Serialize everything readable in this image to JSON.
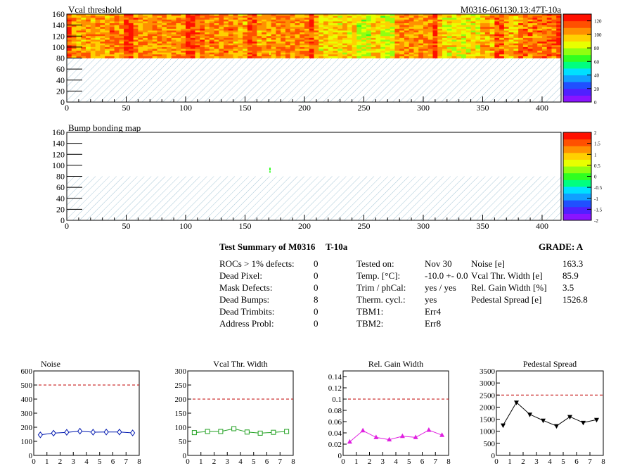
{
  "colors": {
    "palette": [
      "#8a14ff",
      "#5020ff",
      "#2050ff",
      "#10a0ff",
      "#00e0ff",
      "#00ff80",
      "#30ff20",
      "#90ff10",
      "#e8ff00",
      "#ffd000",
      "#ff9000",
      "#ff5000",
      "#ff1000"
    ],
    "noise_series": "#0018b0",
    "vcal_series": "#20a020",
    "gain_series": "#e020e0",
    "pedestal_series": "#000000",
    "limit_line": "#c00000",
    "hatch": "#a8c8d8"
  },
  "maps": [
    {
      "id": "vcal",
      "title": "Vcal threshold",
      "corner_label": "M0316-061130.13:47T-10a",
      "x_ticks": [
        "0",
        "50",
        "100",
        "150",
        "200",
        "250",
        "300",
        "350",
        "400"
      ],
      "y_ticks": [
        "0",
        "20",
        "40",
        "60",
        "80",
        "100",
        "120",
        "140",
        "160"
      ],
      "scale_ticks": [
        "120",
        "100",
        "80",
        "60",
        "40",
        "20",
        "0"
      ]
    },
    {
      "id": "bump",
      "title": "Bump bonding map",
      "corner_label": "",
      "x_ticks": [
        "0",
        "50",
        "100",
        "150",
        "200",
        "250",
        "300",
        "350",
        "400"
      ],
      "y_ticks": [
        "0",
        "20",
        "40",
        "60",
        "80",
        "100",
        "120",
        "140",
        "160"
      ],
      "scale_ticks": [
        "2",
        "1.5",
        "1",
        "0.5",
        "0",
        "-0.5",
        "-1",
        "-1.5",
        "-2"
      ]
    }
  ],
  "summary": {
    "title": "Test Summary of M0316",
    "temp_tag": "T-10a",
    "grade": "GRADE:  A",
    "defects": [
      {
        "label": "ROCs > 1% defects:",
        "value": "0"
      },
      {
        "label": "Dead Pixel:",
        "value": "0"
      },
      {
        "label": "Mask Defects:",
        "value": "0"
      },
      {
        "label": "Dead Bumps:",
        "value": "8"
      },
      {
        "label": "Dead Trimbits:",
        "value": "0"
      },
      {
        "label": "Address Probl:",
        "value": "0"
      }
    ],
    "conditions": [
      {
        "label": "Tested on:",
        "value": "Nov 30"
      },
      {
        "label": "Temp. [°C]:",
        "value": "-10.0 +- 0.0"
      },
      {
        "label": "Trim / phCal:",
        "value": "yes / yes"
      },
      {
        "label": "Therm. cycl.:",
        "value": "yes"
      },
      {
        "label": "TBM1:",
        "value": "Err4"
      },
      {
        "label": "TBM2:",
        "value": "Err8"
      }
    ],
    "results": [
      {
        "label": "Noise [e]",
        "value": "163.3"
      },
      {
        "label": "Vcal Thr. Width [e]",
        "value": "85.9"
      },
      {
        "label": "Rel. Gain Width [%]",
        "value": "3.5"
      },
      {
        "label": "Pedestal Spread [e]",
        "value": "1526.8"
      }
    ]
  },
  "chart_data": [
    {
      "type": "heatmap",
      "title": "Vcal threshold",
      "xlim": [
        0,
        416
      ],
      "ylim": [
        0,
        160
      ],
      "z_range": [
        0,
        130
      ],
      "filled_rows": [
        80,
        160
      ],
      "column_means": [
        105,
        110,
        108,
        112,
        105,
        110,
        95,
        85,
        108,
        92,
        102,
        112
      ],
      "hot_spot": {
        "x": 171,
        "y": 88,
        "z": 85
      }
    },
    {
      "type": "heatmap",
      "title": "Bump bonding map",
      "xlim": [
        0,
        416
      ],
      "ylim": [
        0,
        160
      ],
      "z_range": [
        -2,
        2
      ],
      "filled_rows": [
        80,
        160
      ],
      "dead_bumps": [
        {
          "x": 171,
          "y": 88
        }
      ]
    },
    {
      "type": "line",
      "title": "Noise",
      "x": [
        0.5,
        1.5,
        2.5,
        3.5,
        4.5,
        5.5,
        6.5,
        7.5
      ],
      "values": [
        146,
        158,
        164,
        172,
        165,
        166,
        166,
        160
      ],
      "errors": [
        14,
        14,
        14,
        14,
        14,
        14,
        14,
        14
      ],
      "limit": 500,
      "xlim": [
        0,
        8
      ],
      "ylim": [
        0,
        600
      ],
      "x_ticks": [
        "0",
        "1",
        "2",
        "3",
        "4",
        "5",
        "6",
        "7",
        "8"
      ],
      "y_ticks": [
        "0",
        "100",
        "200",
        "300",
        "400",
        "500",
        "600"
      ],
      "marker": "diamond"
    },
    {
      "type": "line",
      "title": "Vcal Thr. Width",
      "x": [
        0.5,
        1.5,
        2.5,
        3.5,
        4.5,
        5.5,
        6.5,
        7.5
      ],
      "values": [
        81,
        85,
        85,
        95,
        83,
        79,
        82,
        85
      ],
      "limit": 200,
      "xlim": [
        0,
        8
      ],
      "ylim": [
        0,
        300
      ],
      "x_ticks": [
        "0",
        "1",
        "2",
        "3",
        "4",
        "5",
        "6",
        "7",
        "8"
      ],
      "y_ticks": [
        "0",
        "50",
        "100",
        "150",
        "200",
        "250",
        "300"
      ],
      "marker": "square"
    },
    {
      "type": "line",
      "title": "Rel. Gain Width",
      "x": [
        0.5,
        1.5,
        2.5,
        3.5,
        4.5,
        5.5,
        6.5,
        7.5
      ],
      "values": [
        0.024,
        0.044,
        0.032,
        0.028,
        0.034,
        0.032,
        0.045,
        0.036
      ],
      "limit": 0.1,
      "xlim": [
        0,
        8
      ],
      "ylim": [
        0,
        0.15
      ],
      "x_ticks": [
        "0",
        "1",
        "2",
        "3",
        "4",
        "5",
        "6",
        "7",
        "8"
      ],
      "y_ticks": [
        "0",
        "0.02",
        "0.04",
        "0.06",
        "0.08",
        "0.1",
        "0.12",
        "0.14"
      ],
      "marker": "triangle-up"
    },
    {
      "type": "line",
      "title": "Pedestal Spread",
      "x": [
        0.5,
        1.5,
        2.5,
        3.5,
        4.5,
        5.5,
        6.5,
        7.5
      ],
      "values": [
        1250,
        2200,
        1700,
        1450,
        1220,
        1600,
        1360,
        1480
      ],
      "limit": 2500,
      "xlim": [
        0,
        8
      ],
      "ylim": [
        0,
        3500
      ],
      "x_ticks": [
        "0",
        "1",
        "2",
        "3",
        "4",
        "5",
        "6",
        "7",
        "8"
      ],
      "y_ticks": [
        "0",
        "500",
        "1000",
        "1500",
        "2000",
        "2500",
        "3000",
        "3500"
      ],
      "marker": "triangle-down"
    }
  ]
}
